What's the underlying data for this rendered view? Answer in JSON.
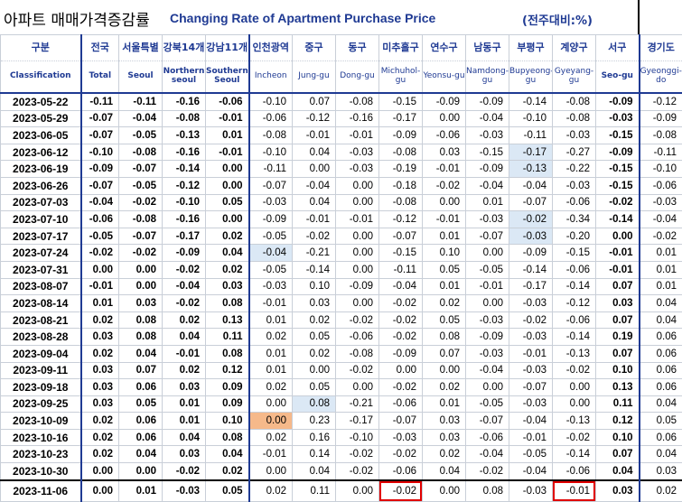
{
  "title": {
    "korean": "아파트 매매가격증감률",
    "english": "Changing Rate of Apartment Purchase Price",
    "unit": "(전주대비:%)"
  },
  "columns": [
    {
      "ko": "구분",
      "en": "Classification"
    },
    {
      "ko": "전국",
      "en": "Total"
    },
    {
      "ko": "서울특별",
      "en": "Seoul"
    },
    {
      "ko": "강북14개",
      "en": "Northern seoul"
    },
    {
      "ko": "강남11개",
      "en": "Southern Seoul"
    },
    {
      "ko": "인천광역",
      "en": "Incheon"
    },
    {
      "ko": "중구",
      "en": "Jung-gu"
    },
    {
      "ko": "동구",
      "en": "Dong-gu"
    },
    {
      "ko": "미추홀구",
      "en": "Michuhol-gu"
    },
    {
      "ko": "연수구",
      "en": "Yeonsu-gu"
    },
    {
      "ko": "남동구",
      "en": "Namdong-gu"
    },
    {
      "ko": "부평구",
      "en": "Bupyeong-gu"
    },
    {
      "ko": "계양구",
      "en": "Gyeyang-gu"
    },
    {
      "ko": "서구",
      "en": "Seo-gu"
    },
    {
      "ko": "경기도",
      "en": "Gyeonggi-do"
    }
  ],
  "rows": [
    {
      "date": "2023-05-22",
      "values": [
        "-0.11",
        "-0.11",
        "-0.16",
        "-0.06",
        "-0.10",
        "0.07",
        "-0.08",
        "-0.15",
        "-0.09",
        "-0.09",
        "-0.14",
        "-0.08",
        "-0.09",
        "-0.12"
      ]
    },
    {
      "date": "2023-05-29",
      "values": [
        "-0.07",
        "-0.04",
        "-0.08",
        "-0.01",
        "-0.06",
        "-0.12",
        "-0.16",
        "-0.17",
        "0.00",
        "-0.04",
        "-0.10",
        "-0.08",
        "-0.03",
        "-0.09"
      ]
    },
    {
      "date": "2023-06-05",
      "values": [
        "-0.07",
        "-0.05",
        "-0.13",
        "0.01",
        "-0.08",
        "-0.01",
        "-0.01",
        "-0.09",
        "-0.06",
        "-0.03",
        "-0.11",
        "-0.03",
        "-0.15",
        "-0.08"
      ]
    },
    {
      "date": "2023-06-12",
      "values": [
        "-0.10",
        "-0.08",
        "-0.16",
        "-0.01",
        "-0.10",
        "0.04",
        "-0.03",
        "-0.08",
        "0.03",
        "-0.15",
        "-0.17",
        "-0.27",
        "-0.09",
        "-0.11"
      ]
    },
    {
      "date": "2023-06-19",
      "values": [
        "-0.09",
        "-0.07",
        "-0.14",
        "0.00",
        "-0.11",
        "0.00",
        "-0.03",
        "-0.19",
        "-0.01",
        "-0.09",
        "-0.13",
        "-0.22",
        "-0.15",
        "-0.10"
      ]
    },
    {
      "date": "2023-06-26",
      "values": [
        "-0.07",
        "-0.05",
        "-0.12",
        "0.00",
        "-0.07",
        "-0.04",
        "0.00",
        "-0.18",
        "-0.02",
        "-0.04",
        "-0.04",
        "-0.03",
        "-0.15",
        "-0.06"
      ]
    },
    {
      "date": "2023-07-03",
      "values": [
        "-0.04",
        "-0.02",
        "-0.10",
        "0.05",
        "-0.03",
        "0.04",
        "0.00",
        "-0.08",
        "0.00",
        "0.01",
        "-0.07",
        "-0.06",
        "-0.02",
        "-0.03"
      ]
    },
    {
      "date": "2023-07-10",
      "values": [
        "-0.06",
        "-0.08",
        "-0.16",
        "0.00",
        "-0.09",
        "-0.01",
        "-0.01",
        "-0.12",
        "-0.01",
        "-0.03",
        "-0.02",
        "-0.34",
        "-0.14",
        "-0.04"
      ]
    },
    {
      "date": "2023-07-17",
      "values": [
        "-0.05",
        "-0.07",
        "-0.17",
        "0.02",
        "-0.05",
        "-0.02",
        "0.00",
        "-0.07",
        "0.01",
        "-0.07",
        "-0.03",
        "-0.20",
        "0.00",
        "-0.02"
      ]
    },
    {
      "date": "2023-07-24",
      "values": [
        "-0.02",
        "-0.02",
        "-0.09",
        "0.04",
        "-0.04",
        "-0.21",
        "0.00",
        "-0.15",
        "0.10",
        "0.00",
        "-0.09",
        "-0.15",
        "-0.01",
        "0.01"
      ]
    },
    {
      "date": "2023-07-31",
      "values": [
        "0.00",
        "0.00",
        "-0.02",
        "0.02",
        "-0.05",
        "-0.14",
        "0.00",
        "-0.11",
        "0.05",
        "-0.05",
        "-0.14",
        "-0.06",
        "-0.01",
        "0.01"
      ]
    },
    {
      "date": "2023-08-07",
      "values": [
        "-0.01",
        "0.00",
        "-0.04",
        "0.03",
        "-0.03",
        "0.10",
        "-0.09",
        "-0.04",
        "0.01",
        "-0.01",
        "-0.17",
        "-0.14",
        "0.07",
        "0.01"
      ]
    },
    {
      "date": "2023-08-14",
      "values": [
        "0.01",
        "0.03",
        "-0.02",
        "0.08",
        "-0.01",
        "0.03",
        "0.00",
        "-0.02",
        "0.02",
        "0.00",
        "-0.03",
        "-0.12",
        "0.03",
        "0.04"
      ]
    },
    {
      "date": "2023-08-21",
      "values": [
        "0.02",
        "0.08",
        "0.02",
        "0.13",
        "0.01",
        "0.02",
        "-0.02",
        "-0.02",
        "0.05",
        "-0.03",
        "-0.02",
        "-0.06",
        "0.07",
        "0.04"
      ]
    },
    {
      "date": "2023-08-28",
      "values": [
        "0.03",
        "0.08",
        "0.04",
        "0.11",
        "0.02",
        "0.05",
        "-0.06",
        "-0.02",
        "0.08",
        "-0.09",
        "-0.03",
        "-0.14",
        "0.19",
        "0.06"
      ]
    },
    {
      "date": "2023-09-04",
      "values": [
        "0.02",
        "0.04",
        "-0.01",
        "0.08",
        "0.01",
        "0.02",
        "-0.08",
        "-0.09",
        "0.07",
        "-0.03",
        "-0.01",
        "-0.13",
        "0.07",
        "0.06"
      ]
    },
    {
      "date": "2023-09-11",
      "values": [
        "0.03",
        "0.07",
        "0.02",
        "0.12",
        "0.01",
        "0.00",
        "-0.02",
        "0.00",
        "0.00",
        "-0.04",
        "-0.03",
        "-0.02",
        "0.10",
        "0.06"
      ]
    },
    {
      "date": "2023-09-18",
      "values": [
        "0.03",
        "0.06",
        "0.03",
        "0.09",
        "0.02",
        "0.05",
        "0.00",
        "-0.02",
        "0.02",
        "0.00",
        "-0.07",
        "0.00",
        "0.13",
        "0.06"
      ]
    },
    {
      "date": "2023-09-25",
      "values": [
        "0.03",
        "0.05",
        "0.01",
        "0.09",
        "0.00",
        "0.08",
        "-0.21",
        "-0.06",
        "0.01",
        "-0.05",
        "-0.03",
        "0.00",
        "0.11",
        "0.04"
      ]
    },
    {
      "date": "2023-10-09",
      "values": [
        "0.02",
        "0.06",
        "0.01",
        "0.10",
        "0.00",
        "0.23",
        "-0.17",
        "-0.07",
        "0.03",
        "-0.07",
        "-0.04",
        "-0.13",
        "0.12",
        "0.05"
      ]
    },
    {
      "date": "2023-10-16",
      "values": [
        "0.02",
        "0.06",
        "0.04",
        "0.08",
        "0.02",
        "0.16",
        "-0.10",
        "-0.03",
        "0.03",
        "-0.06",
        "-0.01",
        "-0.02",
        "0.10",
        "0.06"
      ]
    },
    {
      "date": "2023-10-23",
      "values": [
        "0.02",
        "0.04",
        "0.03",
        "0.04",
        "-0.01",
        "0.14",
        "-0.02",
        "-0.02",
        "0.02",
        "-0.04",
        "-0.05",
        "-0.14",
        "0.07",
        "0.04"
      ]
    },
    {
      "date": "2023-10-30",
      "values": [
        "0.00",
        "0.00",
        "-0.02",
        "0.02",
        "0.00",
        "0.04",
        "-0.02",
        "-0.06",
        "0.04",
        "-0.02",
        "-0.04",
        "-0.06",
        "0.04",
        "0.03"
      ]
    },
    {
      "date": "2023-11-06",
      "values": [
        "0.00",
        "0.01",
        "-0.03",
        "0.05",
        "0.02",
        "0.11",
        "0.00",
        "-0.02",
        "0.00",
        "0.08",
        "-0.03",
        "-0.01",
        "0.03",
        "0.02"
      ]
    }
  ],
  "highlights": {
    "blue": [
      [
        3,
        11
      ],
      [
        4,
        11
      ],
      [
        7,
        11
      ],
      [
        8,
        11
      ],
      [
        9,
        5
      ],
      [
        18,
        6
      ]
    ],
    "orange": [
      [
        19,
        5
      ]
    ],
    "red_box": [
      [
        23,
        8
      ],
      [
        23,
        12
      ]
    ]
  },
  "bold_columns": [
    0,
    1,
    2,
    3,
    4,
    13
  ],
  "colors": {
    "header_text": "#1f3a93",
    "blue_highlight": "#dbe8f5",
    "orange_highlight": "#f6b98a",
    "red_box": "#e00000"
  }
}
